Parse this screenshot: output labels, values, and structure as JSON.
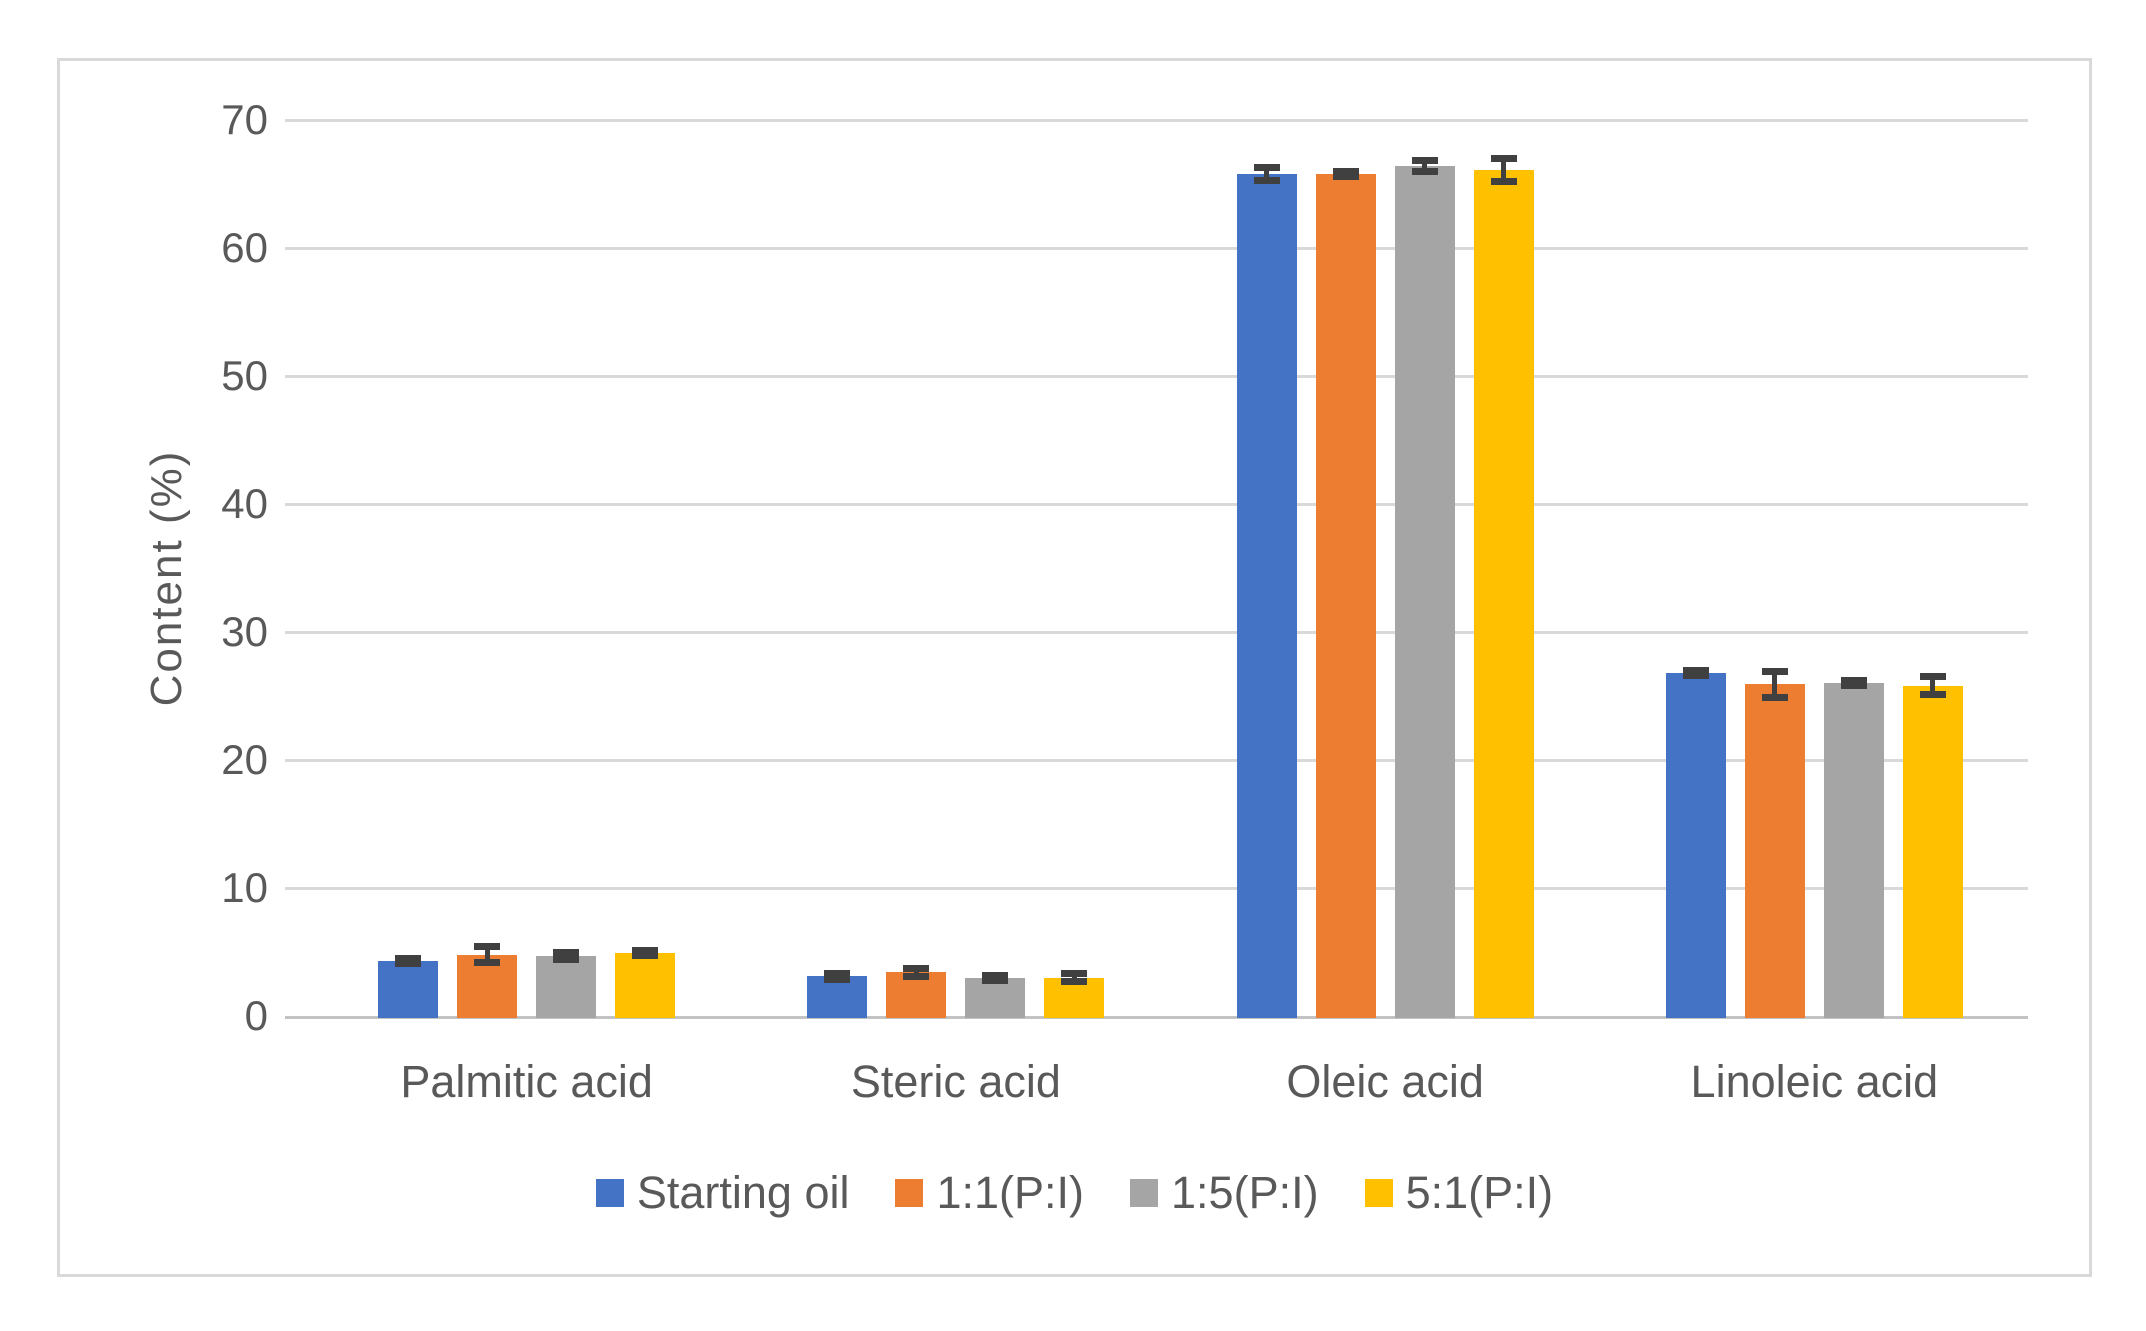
{
  "chart_data": {
    "type": "bar",
    "title": "",
    "xlabel": "",
    "ylabel": "Content (%)",
    "ylim": [
      0,
      70
    ],
    "yticks": [
      0,
      10,
      20,
      30,
      40,
      50,
      60,
      70
    ],
    "grid": true,
    "legend_position": "bottom",
    "categories": [
      "Palmitic acid",
      "Steric acid",
      "Oleic acid",
      "Linoleic acid"
    ],
    "series": [
      {
        "name": "Starting oil",
        "color": "#4472C4",
        "values": [
          4.3,
          3.1,
          65.8,
          26.8
        ],
        "errors": [
          0.2,
          0.25,
          0.5,
          0.2
        ]
      },
      {
        "name": "1:1(P:I)",
        "color": "#ED7D31",
        "values": [
          4.8,
          3.4,
          65.8,
          25.9
        ],
        "errors": [
          0.6,
          0.3,
          0.2,
          1.0
        ]
      },
      {
        "name": "1:5(P:I)",
        "color": "#A5A5A5",
        "values": [
          4.7,
          3.0,
          66.4,
          26.0
        ],
        "errors": [
          0.25,
          0.2,
          0.4,
          0.2
        ]
      },
      {
        "name": "5:1(P:I)",
        "color": "#FFC000",
        "values": [
          4.9,
          3.0,
          66.1,
          25.8
        ],
        "errors": [
          0.2,
          0.3,
          0.9,
          0.7
        ]
      }
    ],
    "error_bar_color": "#404040",
    "gridline_color": "#d9d9d9",
    "axis_line_color": "#c3c3c3",
    "text_color": "#595959"
  }
}
